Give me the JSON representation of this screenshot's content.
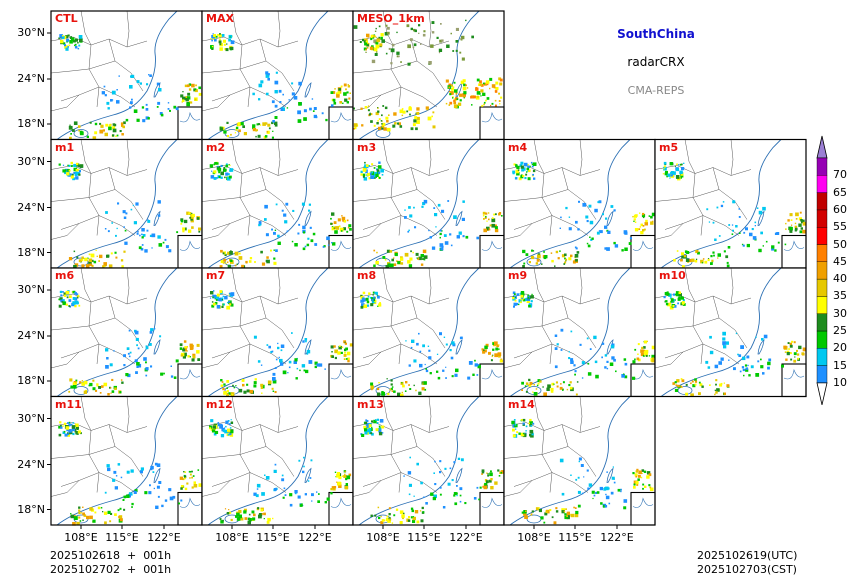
{
  "header": {
    "region": "SouthChina",
    "variable": "radarCRX",
    "model": "CMA-REPS"
  },
  "panels": [
    {
      "title": "CTL",
      "row": 0,
      "col": 0
    },
    {
      "title": "MAX",
      "row": 0,
      "col": 1
    },
    {
      "title": "MESO_1km",
      "row": 0,
      "col": 2
    },
    {
      "title": "m1",
      "row": 1,
      "col": 0
    },
    {
      "title": "m2",
      "row": 1,
      "col": 1
    },
    {
      "title": "m3",
      "row": 1,
      "col": 2
    },
    {
      "title": "m4",
      "row": 1,
      "col": 3
    },
    {
      "title": "m5",
      "row": 1,
      "col": 4
    },
    {
      "title": "m6",
      "row": 2,
      "col": 0
    },
    {
      "title": "m7",
      "row": 2,
      "col": 1
    },
    {
      "title": "m8",
      "row": 2,
      "col": 2
    },
    {
      "title": "m9",
      "row": 2,
      "col": 3
    },
    {
      "title": "m10",
      "row": 2,
      "col": 4
    },
    {
      "title": "m11",
      "row": 3,
      "col": 0
    },
    {
      "title": "m12",
      "row": 3,
      "col": 1
    },
    {
      "title": "m13",
      "row": 3,
      "col": 2
    },
    {
      "title": "m14",
      "row": 3,
      "col": 3
    }
  ],
  "axes": {
    "lat_ticks": [
      "30°N",
      "24°N",
      "18°N"
    ],
    "lon_ticks": [
      "108°E",
      "115°E",
      "122°E"
    ]
  },
  "colorbar": {
    "levels": [
      "10",
      "15",
      "20",
      "25",
      "30",
      "35",
      "40",
      "45",
      "50",
      "55",
      "60",
      "65",
      "70"
    ],
    "colors": [
      "#1e90ff",
      "#00c8f0",
      "#00c800",
      "#1e8c1e",
      "#ffff00",
      "#e6c800",
      "#f0a000",
      "#ff8000",
      "#ff0000",
      "#d20000",
      "#c00000",
      "#ff00f0",
      "#9600b4"
    ],
    "over_color": "#9b7fd4",
    "under_color": "#ffffff"
  },
  "footer": {
    "init_utc": "2025102618  +  001h",
    "init_cst": "2025102702  +  001h",
    "valid_utc": "2025102619(UTC)",
    "valid_cst": "2025102703(CST)"
  }
}
